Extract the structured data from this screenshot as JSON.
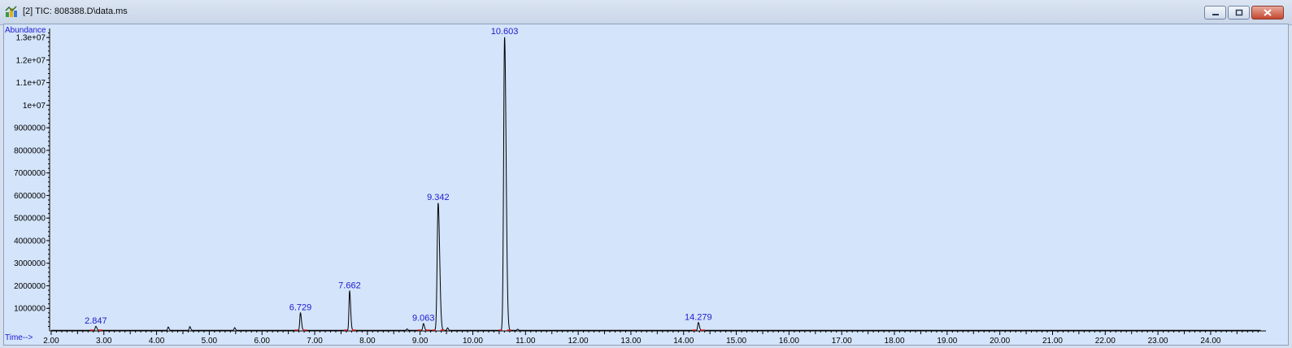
{
  "window": {
    "title": "[2] TIC: 808388.D\\data.ms",
    "icon": "chromatogram-app-icon",
    "buttons": [
      "minimize-icon",
      "restore-icon",
      "close-icon"
    ]
  },
  "colors": {
    "plot_bg": "#d4e4fa",
    "trace": "#000000",
    "peak_label": "#1a1ad0",
    "axis_label": "#1a1ad0",
    "baseline_marker": "#e02020"
  },
  "chart_data": {
    "type": "line",
    "ylabel": "Abundance",
    "xlabel": "Time-->",
    "xlim": [
      1.97,
      25.05
    ],
    "ylim": [
      0,
      13400000
    ],
    "x_ticks": [
      "2.00",
      "3.00",
      "4.00",
      "5.00",
      "6.00",
      "7.00",
      "8.00",
      "9.00",
      "10.00",
      "11.00",
      "12.00",
      "13.00",
      "14.00",
      "15.00",
      "16.00",
      "17.00",
      "18.00",
      "19.00",
      "20.00",
      "21.00",
      "22.00",
      "23.00",
      "24.00"
    ],
    "y_ticks": [
      {
        "value": 1000000,
        "label": "1000000"
      },
      {
        "value": 2000000,
        "label": "2000000"
      },
      {
        "value": 3000000,
        "label": "3000000"
      },
      {
        "value": 4000000,
        "label": "4000000"
      },
      {
        "value": 5000000,
        "label": "5000000"
      },
      {
        "value": 6000000,
        "label": "6000000"
      },
      {
        "value": 7000000,
        "label": "7000000"
      },
      {
        "value": 8000000,
        "label": "8000000"
      },
      {
        "value": 9000000,
        "label": "9000000"
      },
      {
        "value": 10000000,
        "label": "1e+07"
      },
      {
        "value": 11000000,
        "label": "1.1e+07"
      },
      {
        "value": 12000000,
        "label": "1.2e+07"
      },
      {
        "value": 13000000,
        "label": "1.3e+07"
      }
    ],
    "labeled_peaks": [
      {
        "x": 2.847,
        "y": 180000,
        "label": "2.847"
      },
      {
        "x": 6.729,
        "y": 780000,
        "label": "6.729"
      },
      {
        "x": 7.662,
        "y": 1750000,
        "label": "7.662"
      },
      {
        "x": 9.063,
        "y": 300000,
        "label": "9.063"
      },
      {
        "x": 9.342,
        "y": 5650000,
        "label": "9.342"
      },
      {
        "x": 10.603,
        "y": 13000000,
        "label": "10.603"
      },
      {
        "x": 14.279,
        "y": 350000,
        "label": "14.279"
      }
    ],
    "minor_peaks": [
      {
        "x": 4.22,
        "y": 150000
      },
      {
        "x": 4.63,
        "y": 170000
      },
      {
        "x": 5.48,
        "y": 120000
      },
      {
        "x": 8.75,
        "y": 60000
      },
      {
        "x": 9.52,
        "y": 110000
      },
      {
        "x": 10.85,
        "y": 50000
      }
    ]
  }
}
